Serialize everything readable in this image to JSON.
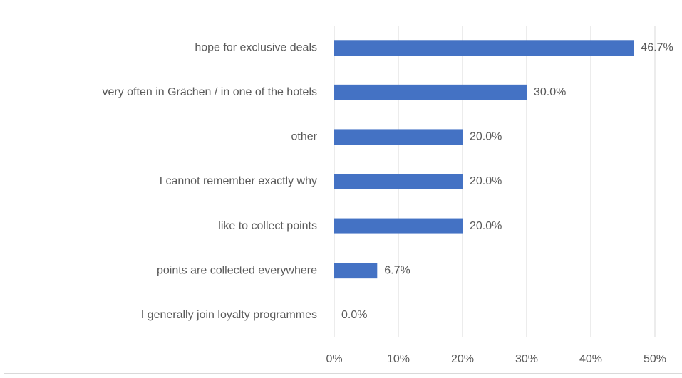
{
  "chart_data": {
    "type": "bar",
    "orientation": "horizontal",
    "categories": [
      "hope for exclusive deals",
      "very often in Grächen / in one of the hotels",
      "other",
      "I cannot remember exactly why",
      "like to collect points",
      "points are collected everywhere",
      "I generally join loyalty programmes"
    ],
    "values": [
      46.7,
      30.0,
      20.0,
      20.0,
      20.0,
      6.7,
      0.0
    ],
    "value_labels": [
      "46.7%",
      "30.0%",
      "20.0%",
      "20.0%",
      "20.0%",
      "6.7%",
      "0.0%"
    ],
    "color": "#4472c4",
    "xlim": [
      0,
      50
    ],
    "xticks": [
      {
        "value": 0,
        "label": "0%"
      },
      {
        "value": 10,
        "label": "10%"
      },
      {
        "value": 20,
        "label": "20%"
      },
      {
        "value": 30,
        "label": "30%"
      },
      {
        "value": 40,
        "label": "40%"
      },
      {
        "value": 50,
        "label": "50%"
      }
    ],
    "grid": true
  }
}
